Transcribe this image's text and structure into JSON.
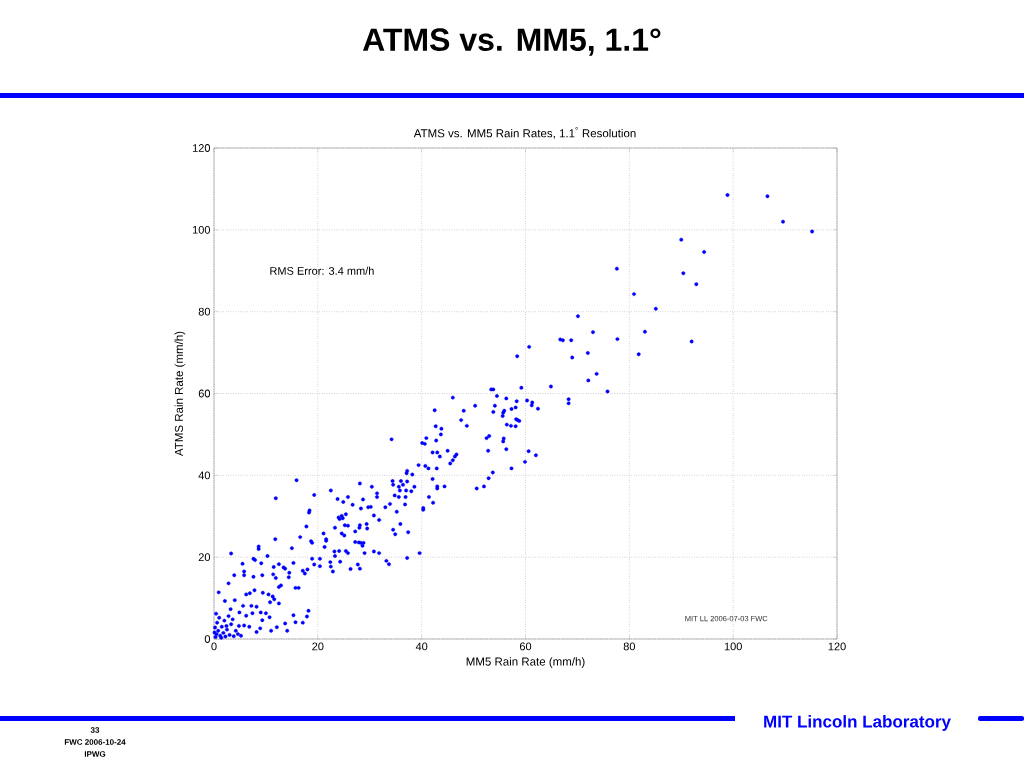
{
  "chart_data": {
    "type": "scatter",
    "title": "ATMS vs. MM5, 1.1°",
    "subtitle": "ATMS vs. MM5 Rain Rates, 1.1$^{°}$ Resolution",
    "xlabel": "MM5 Rain Rate (mm/h)",
    "ylabel": "ATMS Rain Rate (mm/h)",
    "annotations": [
      "RMS Error: 3.4 mm/h",
      "MIT LL 2006-07-03 FWC",
      "33",
      "FWC 2006-10-24",
      "IPWG",
      "MIT Lincoln Laboratory"
    ],
    "xlim": [
      0,
      120
    ],
    "ylim": [
      0,
      120
    ],
    "xticks": [
      0,
      20,
      40,
      60,
      80,
      100,
      120
    ],
    "yticks": [
      0,
      20,
      40,
      60,
      80,
      100,
      120
    ],
    "grid": true,
    "marker": "circle",
    "series": [
      {
        "color": "#0000ff",
        "x": [
          98.9,
          106.6,
          109.6,
          115.2,
          90.0,
          94.4,
          77.6,
          90.4,
          92.9,
          80.9,
          85.1,
          70.1,
          73.0,
          83.0,
          66.7,
          67.2,
          68.8,
          77.7,
          92.0,
          72.0,
          81.8,
          69.0,
          73.7,
          72.1,
          75.8,
          68.3,
          68.3,
          60.7,
          58.4,
          64.9,
          53.4,
          53.8,
          59.2,
          46.0,
          54.5,
          56.3,
          58.3,
          60.3,
          61.3,
          61.2,
          62.4,
          42.5,
          48.1,
          50.3,
          54.1,
          53.8,
          55.9,
          55.7,
          57.3,
          58.1,
          55.6,
          58.2,
          58.5,
          58.8,
          47.6,
          42.7,
          43.8,
          48.7,
          56.4,
          57.2,
          58.1,
          40.9,
          43.7,
          42.8,
          40.1,
          40.6,
          52.5,
          53.0,
          55.8,
          55.7,
          42.1,
          43.0,
          45.0,
          43.5,
          46.7,
          46.4,
          46.0,
          45.5,
          52.8,
          56.3,
          60.6,
          62.0,
          59.9,
          40.7,
          41.3,
          42.9,
          57.3,
          53.7,
          52.9,
          42.1,
          43.0,
          43.0,
          44.4,
          50.6,
          52.0,
          41.4,
          42.2,
          40.3,
          34.2,
          39.4,
          37.2,
          37.1,
          38.2,
          28.1,
          30.4,
          34.4,
          34.5,
          35.6,
          36.0,
          36.4,
          37.2,
          37.0,
          35.8,
          38.6,
          38.0,
          34.8,
          35.6,
          36.9,
          31.4,
          31.4,
          19.3,
          22.5,
          23.8,
          24.9,
          25.8,
          26.7,
          28.7,
          28.3,
          29.7,
          30.2,
          33.9,
          33.0,
          36.8,
          35.2,
          30.8,
          25.4,
          24.0,
          24.2,
          24.6,
          24.8,
          23.3,
          25.2,
          25.8,
          24.6,
          25.1,
          27.2,
          28.1,
          28.0,
          29.4,
          29.5,
          31.8,
          34.5,
          34.9,
          35.9,
          37.4,
          40.3,
          17.8,
          18.9,
          18.7,
          18.3,
          18.4,
          16.6,
          21.1,
          21.6,
          21.6,
          21.3,
          23.2,
          24.1,
          23.3,
          25.4,
          25.8,
          27.2,
          27.9,
          28.3,
          28.8,
          28.6,
          29.0,
          30.8,
          31.8,
          33.2,
          33.7,
          24.3,
          26.3,
          28.1,
          27.7,
          22.5,
          22.9,
          22.4,
          20.4,
          20.4,
          18.9,
          19.3,
          18.0,
          17.1,
          17.5,
          37.2,
          39.6,
          15.9,
          11.9,
          11.8,
          8.6,
          8.6,
          3.3,
          7.6,
          7.9,
          10.3,
          5.5,
          9.1,
          11.5,
          12.5,
          13.4,
          13.7,
          15.3,
          3.9,
          5.8,
          5.8,
          7.6,
          9.3,
          11.4,
          11.9,
          12.9,
          12.5,
          14.5,
          14.4,
          15.7,
          16.3,
          2.8,
          0.9,
          6.2,
          6.9,
          7.8,
          9.4,
          10.5,
          11.3,
          11.6,
          10.8,
          12.5,
          2.1,
          4.0,
          3.2,
          5.6,
          7.2,
          8.2,
          4.9,
          6.2,
          7.4,
          9.0,
          10.0,
          10.7,
          9.3,
          15.3,
          17.9,
          18.2,
          15.7,
          17.1,
          11.0,
          12.1,
          13.7,
          14.1,
          8.2,
          8.9,
          6.8,
          5.8,
          15.0,
          0.3,
          0.5,
          0.8,
          1.2,
          1.5,
          1.8,
          2.2,
          2.5,
          3.0,
          3.3,
          3.8,
          4.2,
          4.6,
          0.2,
          0.6,
          1.0,
          2.0,
          2.8,
          0.4,
          1.4,
          3.6,
          4.8,
          5.2,
          0.1,
          2.4
        ],
        "values": [
          108.5,
          108.2,
          102.0,
          99.6,
          97.6,
          94.6,
          90.5,
          89.4,
          86.7,
          84.3,
          80.7,
          78.9,
          75.0,
          75.1,
          73.2,
          73.0,
          73.0,
          73.3,
          72.7,
          69.9,
          69.6,
          68.8,
          64.8,
          63.2,
          60.5,
          58.6,
          57.6,
          71.4,
          69.1,
          61.7,
          61.0,
          61.0,
          61.4,
          59.0,
          59.4,
          58.8,
          58.1,
          58.3,
          57.8,
          57.1,
          56.3,
          55.9,
          55.8,
          57.0,
          57.0,
          55.5,
          55.8,
          55.3,
          56.2,
          56.6,
          54.5,
          53.7,
          53.5,
          53.3,
          53.5,
          52.0,
          51.4,
          52.1,
          52.4,
          52.1,
          52.0,
          49.1,
          50.0,
          48.5,
          47.9,
          47.7,
          49.1,
          49.6,
          49.0,
          48.3,
          45.6,
          45.6,
          46.0,
          44.6,
          45.1,
          44.6,
          43.7,
          42.9,
          46.0,
          46.4,
          45.9,
          44.9,
          43.3,
          42.3,
          41.7,
          41.7,
          41.7,
          40.7,
          39.3,
          39.1,
          37.3,
          36.8,
          37.3,
          36.8,
          37.3,
          34.7,
          33.3,
          32.0,
          48.8,
          42.5,
          41.1,
          40.5,
          40.2,
          38.0,
          37.2,
          38.6,
          37.7,
          37.2,
          38.6,
          37.7,
          38.5,
          36.3,
          36.3,
          37.2,
          36.1,
          35.1,
          34.7,
          34.7,
          35.6,
          34.7,
          35.2,
          36.3,
          34.2,
          33.5,
          34.7,
          32.8,
          34.1,
          31.9,
          32.2,
          32.3,
          33.0,
          32.2,
          32.9,
          31.1,
          30.2,
          30.5,
          29.7,
          29.3,
          30.1,
          29.5,
          27.2,
          27.8,
          27.7,
          25.8,
          25.3,
          26.3,
          27.8,
          27.2,
          28.1,
          27.0,
          29.1,
          26.7,
          25.6,
          28.1,
          26.1,
          31.6,
          27.5,
          23.5,
          23.9,
          30.9,
          31.4,
          24.9,
          25.8,
          24.4,
          24.0,
          22.5,
          21.4,
          21.5,
          20.3,
          21.5,
          21.0,
          23.7,
          23.6,
          23.5,
          23.5,
          22.8,
          21.0,
          21.4,
          21.0,
          19.1,
          18.3,
          18.9,
          17.1,
          17.2,
          18.2,
          17.7,
          16.5,
          18.8,
          19.6,
          17.8,
          19.6,
          18.2,
          17.0,
          16.7,
          16.0,
          19.8,
          21.0,
          38.8,
          34.4,
          24.4,
          22.6,
          22.0,
          20.9,
          19.6,
          19.3,
          20.3,
          18.4,
          18.5,
          17.6,
          18.3,
          17.5,
          17.2,
          18.6,
          15.6,
          16.5,
          15.6,
          15.2,
          15.6,
          15.8,
          14.9,
          13.1,
          12.7,
          16.2,
          15.1,
          12.5,
          12.5,
          13.6,
          11.4,
          10.9,
          11.2,
          11.9,
          11.3,
          10.9,
          10.4,
          9.7,
          9.0,
          8.7,
          9.3,
          9.5,
          7.3,
          8.1,
          8.1,
          7.9,
          6.5,
          5.7,
          6.3,
          6.5,
          6.3,
          5.3,
          4.6,
          5.8,
          5.5,
          6.9,
          4.1,
          4.0,
          2.0,
          2.9,
          3.8,
          2.0,
          1.7,
          2.6,
          3.0,
          3.3,
          22.2,
          0.5,
          1.2,
          2.0,
          0.8,
          3.0,
          1.5,
          0.6,
          2.3,
          1.0,
          3.6,
          0.7,
          2.0,
          1.2,
          2.8,
          4.0,
          5.2,
          4.5,
          5.6,
          6.2,
          0.3,
          4.8,
          3.2,
          0.8,
          1.6,
          3.2
        ]
      }
    ]
  }
}
